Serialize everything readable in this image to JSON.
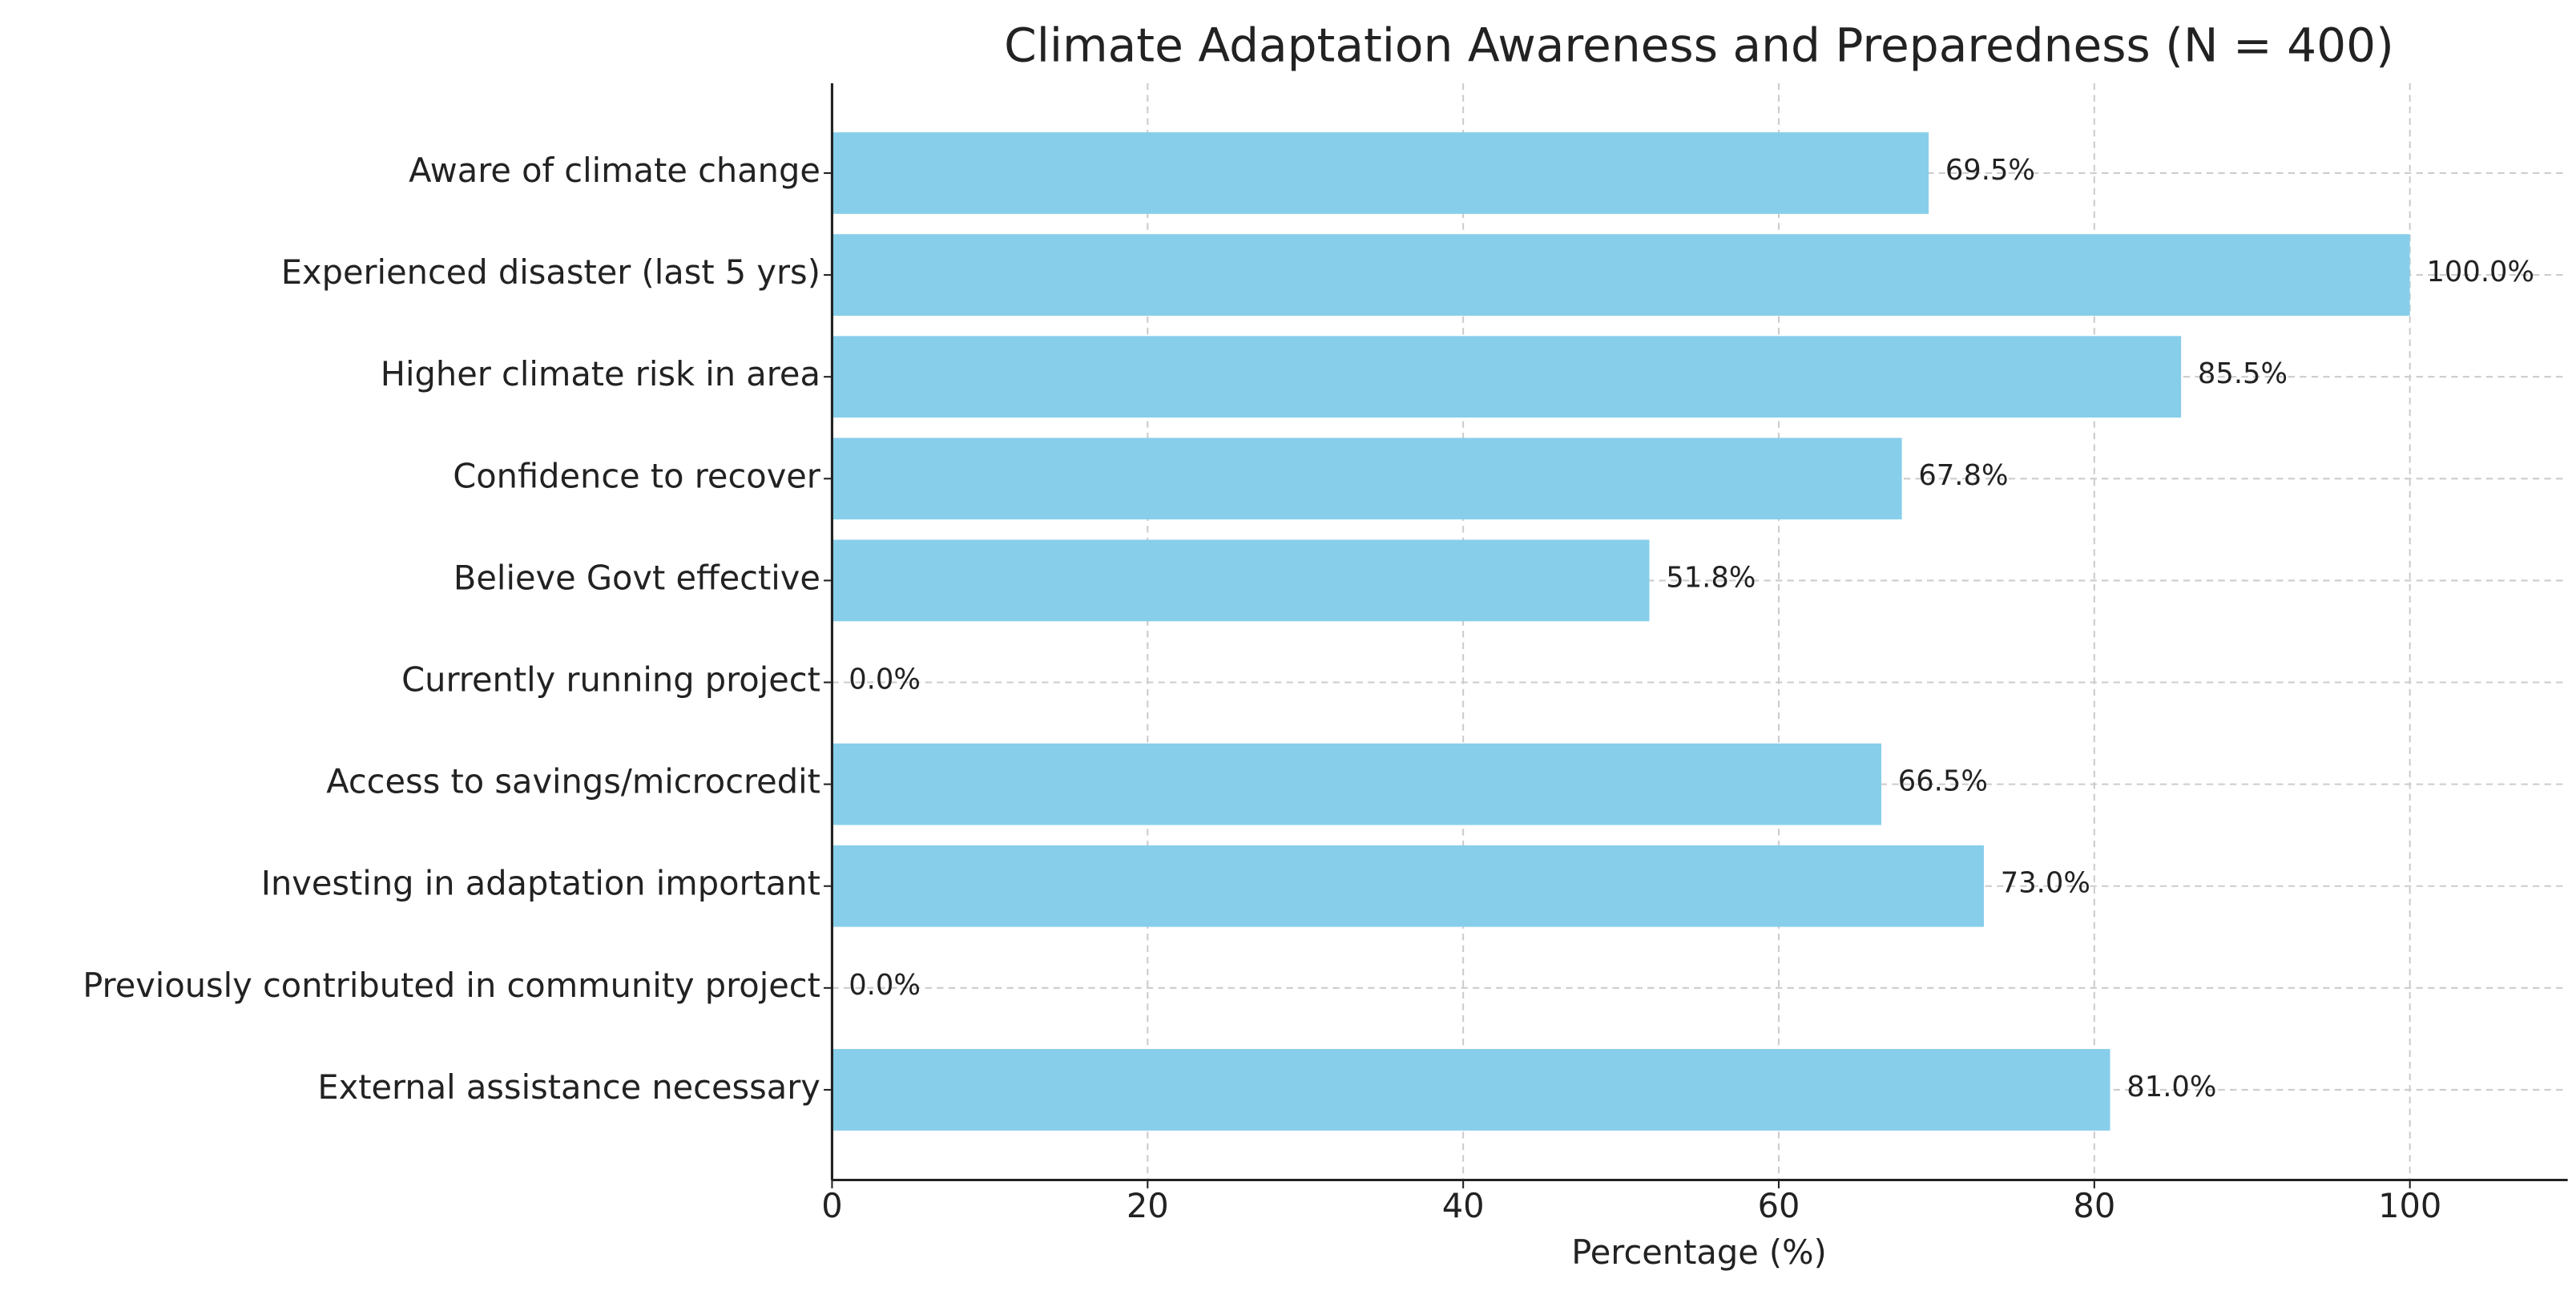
{
  "chart_data": {
    "type": "bar",
    "orientation": "horizontal",
    "title": "Climate Adaptation Awareness and Preparedness (N = 400)",
    "xlabel": "Percentage (%)",
    "categories": [
      "Aware of climate change",
      "Experienced disaster (last 5 yrs)",
      "Higher climate risk in area",
      "Confidence to recover",
      "Believe Govt effective",
      "Currently running project",
      "Access to savings/microcredit",
      "Investing in adaptation important",
      "Previously contributed in community project",
      "External assistance necessary"
    ],
    "values": [
      69.5,
      100.0,
      85.5,
      67.8,
      51.8,
      0.0,
      66.5,
      73.0,
      0.0,
      81.0
    ],
    "value_labels": [
      "69.5%",
      "100.0%",
      "85.5%",
      "67.8%",
      "51.8%",
      "0.0%",
      "66.5%",
      "73.0%",
      "0.0%",
      "81.0%"
    ],
    "color": "#87ceeb",
    "xlim": [
      0,
      110
    ],
    "xticks": [
      0,
      20,
      40,
      60,
      80,
      100
    ],
    "grid": true
  }
}
